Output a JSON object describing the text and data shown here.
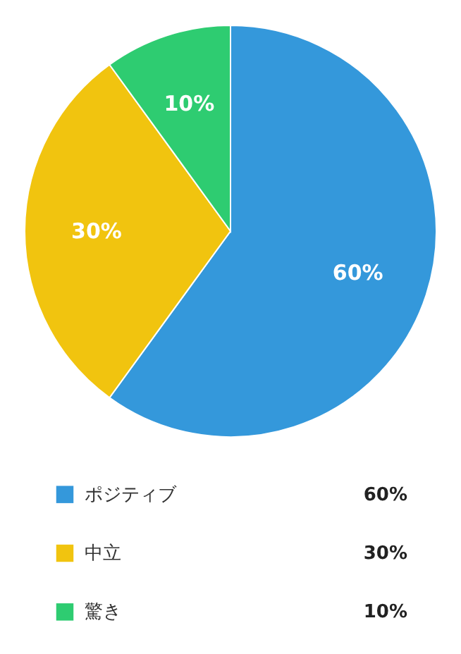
{
  "chart_data": {
    "type": "pie",
    "categories": [
      "ポジティブ",
      "中立",
      "驚き"
    ],
    "values": [
      60,
      30,
      10
    ],
    "colors": [
      "#3498db",
      "#f1c40f",
      "#2ecc71"
    ],
    "value_labels": [
      "60%",
      "30%",
      "10%"
    ],
    "legend": "bottom"
  }
}
